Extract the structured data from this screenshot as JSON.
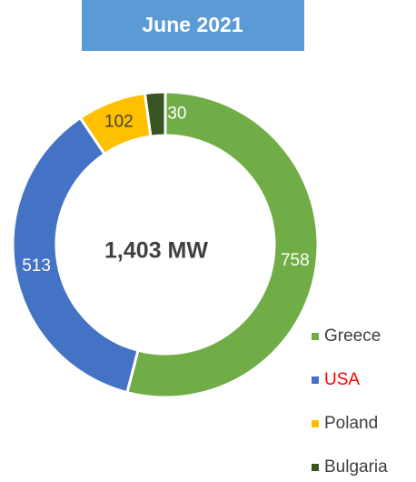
{
  "chart_data": {
    "type": "donut",
    "title": "June 2021",
    "center_label": "1,403 MW",
    "categories": [
      "Greece",
      "USA",
      "Poland",
      "Bulgaria"
    ],
    "values": [
      758,
      513,
      102,
      30
    ],
    "colors": [
      "#70ad47",
      "#4472c4",
      "#ffc000",
      "#375623"
    ],
    "title_color": "#5b9bd5",
    "legend": "bottom-right"
  }
}
